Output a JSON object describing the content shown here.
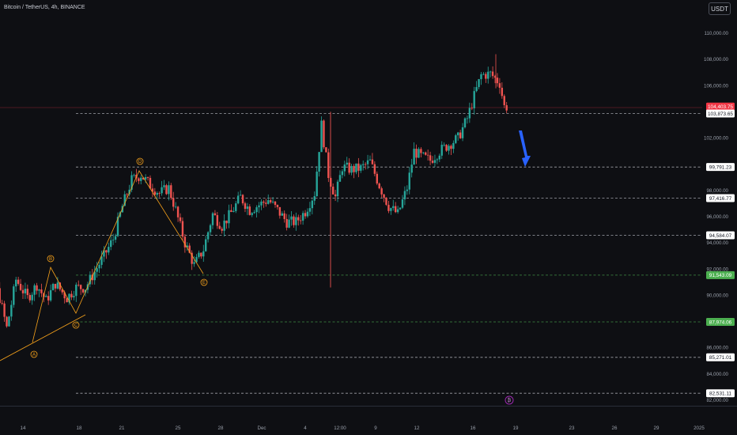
{
  "header": {
    "symbol": "Bitcoin / TetherUS, 4h, BINANCE",
    "currency": "USDT"
  },
  "colors": {
    "background": "#0e0f13",
    "up": "#26a69a",
    "down": "#ef5350",
    "level_line": "#d1d4dc",
    "green_level": "#4caf50",
    "arrow": "#2962ff",
    "wave": "#f7a21b",
    "current_price": "#f23645"
  },
  "chart_data": {
    "type": "candlestick",
    "title": "",
    "ylim": [
      81500,
      111500
    ],
    "y_ticks": [
      "110,000.00",
      "108,000.00",
      "106,000.00",
      "102,000.00",
      "98,000.00",
      "96,000.00",
      "94,000.00",
      "92,000.00",
      "90,000.00",
      "86,000.00",
      "84,000.00",
      "82,000.00"
    ],
    "x_ticks": [
      "14",
      "18",
      "21",
      "25",
      "28",
      "Dec",
      "4",
      "12:00",
      "9",
      "12",
      "16",
      "19",
      "23",
      "26",
      "29",
      "2025"
    ],
    "price_labels": [
      {
        "value": 104403.75,
        "text": "104,403.75",
        "kind": "current"
      },
      {
        "value": 103873.65,
        "text": "103,873.65",
        "kind": "white"
      },
      {
        "value": 99791.23,
        "text": "99,791.23",
        "kind": "white"
      },
      {
        "value": 97416.77,
        "text": "97,416.77",
        "kind": "white"
      },
      {
        "value": 94584.07,
        "text": "94,584.07",
        "kind": "white"
      },
      {
        "value": 91543.09,
        "text": "91,543.09",
        "kind": "green"
      },
      {
        "value": 87974.06,
        "text": "87,974.06",
        "kind": "green"
      },
      {
        "value": 85271.01,
        "text": "85,271.01",
        "kind": "white"
      },
      {
        "value": 82531.11,
        "text": "82,531.11",
        "kind": "white"
      }
    ],
    "wave_labels": [
      "A",
      "B",
      "C",
      "D",
      "E"
    ],
    "path_points": [
      {
        "date": "2024-11-10T00:00",
        "price": 87400
      },
      {
        "date": "2024-11-11T00:00",
        "price": 89000
      },
      {
        "date": "2024-11-11T20:00",
        "price": 91800
      },
      {
        "date": "2024-11-12T12:00",
        "price": 89800
      },
      {
        "date": "2024-11-13T00:00",
        "price": 87500
      },
      {
        "date": "2024-11-13T16:00",
        "price": 91200
      },
      {
        "date": "2024-11-14T12:00",
        "price": 89800
      },
      {
        "date": "2024-11-15T04:00",
        "price": 90800
      },
      {
        "date": "2024-11-15T20:00",
        "price": 89600
      },
      {
        "date": "2024-11-16T12:00",
        "price": 90900
      },
      {
        "date": "2024-11-17T08:00",
        "price": 89800
      },
      {
        "date": "2024-11-18T00:00",
        "price": 90600
      },
      {
        "date": "2024-11-18T16:00",
        "price": 90600
      },
      {
        "date": "2024-11-19T08:00",
        "price": 91800
      },
      {
        "date": "2024-11-20T00:00",
        "price": 93000
      },
      {
        "date": "2024-11-20T16:00",
        "price": 94300
      },
      {
        "date": "2024-11-21T08:00",
        "price": 96800
      },
      {
        "date": "2024-11-22T00:00",
        "price": 98800
      },
      {
        "date": "2024-11-22T16:00",
        "price": 99200
      },
      {
        "date": "2024-11-23T08:00",
        "price": 98400
      },
      {
        "date": "2024-11-24T00:00",
        "price": 97800
      },
      {
        "date": "2024-11-24T16:00",
        "price": 98200
      },
      {
        "date": "2024-11-25T04:00",
        "price": 96500
      },
      {
        "date": "2024-11-25T20:00",
        "price": 94000
      },
      {
        "date": "2024-11-26T12:00",
        "price": 92300
      },
      {
        "date": "2024-11-27T04:00",
        "price": 93500
      },
      {
        "date": "2024-11-27T20:00",
        "price": 96200
      },
      {
        "date": "2024-11-28T12:00",
        "price": 95300
      },
      {
        "date": "2024-11-29T04:00",
        "price": 96300
      },
      {
        "date": "2024-11-29T20:00",
        "price": 97500
      },
      {
        "date": "2024-11-30T12:00",
        "price": 96500
      },
      {
        "date": "2024-12-01T04:00",
        "price": 96900
      },
      {
        "date": "2024-12-01T20:00",
        "price": 97300
      },
      {
        "date": "2024-12-02T12:00",
        "price": 96500
      },
      {
        "date": "2024-12-03T04:00",
        "price": 95600
      },
      {
        "date": "2024-12-03T20:00",
        "price": 95600
      },
      {
        "date": "2024-12-04T12:00",
        "price": 96400
      },
      {
        "date": "2024-12-05T04:00",
        "price": 97800
      },
      {
        "date": "2024-12-05T16:00",
        "price": 103000
      },
      {
        "date": "2024-12-06T04:00",
        "price": 99200
      },
      {
        "date": "2024-12-06T16:00",
        "price": 97500
      },
      {
        "date": "2024-12-07T04:00",
        "price": 99800
      },
      {
        "date": "2024-12-07T20:00",
        "price": 99600
      },
      {
        "date": "2024-12-08T12:00",
        "price": 99700
      },
      {
        "date": "2024-12-09T04:00",
        "price": 100200
      },
      {
        "date": "2024-12-09T20:00",
        "price": 98400
      },
      {
        "date": "2024-12-10T12:00",
        "price": 96800
      },
      {
        "date": "2024-12-11T04:00",
        "price": 96200
      },
      {
        "date": "2024-12-11T20:00",
        "price": 98200
      },
      {
        "date": "2024-12-12T08:00",
        "price": 101000
      },
      {
        "date": "2024-12-12T20:00",
        "price": 100600
      },
      {
        "date": "2024-12-13T12:00",
        "price": 100300
      },
      {
        "date": "2024-12-14T04:00",
        "price": 101000
      },
      {
        "date": "2024-12-14T20:00",
        "price": 101500
      },
      {
        "date": "2024-12-15T12:00",
        "price": 102000
      },
      {
        "date": "2024-12-16T04:00",
        "price": 103500
      },
      {
        "date": "2024-12-16T16:00",
        "price": 105200
      },
      {
        "date": "2024-12-17T04:00",
        "price": 106800
      },
      {
        "date": "2024-12-17T20:00",
        "price": 106900
      },
      {
        "date": "2024-12-18T12:00",
        "price": 106200
      },
      {
        "date": "2024-12-18T20:00",
        "price": 104400
      }
    ]
  }
}
